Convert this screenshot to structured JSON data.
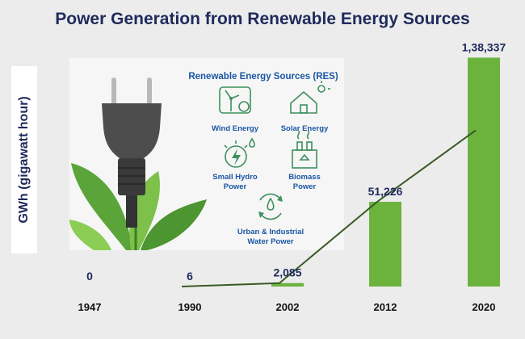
{
  "chart_data": {
    "type": "bar",
    "title": "Power Generation from Renewable Energy Sources",
    "ylabel": "GWh (gigawatt hour)",
    "xlabel": "",
    "categories": [
      "1947",
      "1990",
      "2002",
      "2012",
      "2020"
    ],
    "values": [
      0,
      6,
      2085,
      51226,
      138337
    ],
    "value_labels": [
      "0",
      "6",
      "2,085",
      "51,226",
      "1,38,337"
    ],
    "overlay": "line through the bar values",
    "ylim": [
      0,
      140000
    ],
    "grid": false,
    "legend": "none"
  },
  "colors": {
    "bar": "#6cb33e",
    "line": "#3a5a25",
    "title": "#1f2a5c",
    "res_text": "#1b56a4",
    "background": "#ececec"
  },
  "illustration": {
    "image": "electric plug with green leaves",
    "heading": "Renewable Energy Sources (RES)",
    "items": [
      {
        "icon": "wind-turbine-icon",
        "label_lines": [
          "Wind Energy"
        ]
      },
      {
        "icon": "solar-house-icon",
        "label_lines": [
          "Solar Energy"
        ]
      },
      {
        "icon": "hydro-power-icon",
        "label_lines": [
          "Small Hydro",
          "Power"
        ]
      },
      {
        "icon": "biomass-factory-icon",
        "label_lines": [
          "Biomass",
          "Power"
        ]
      },
      {
        "icon": "recycle-water-icon",
        "label_lines": [
          "Urban & Industrial",
          "Water Power"
        ]
      }
    ]
  }
}
